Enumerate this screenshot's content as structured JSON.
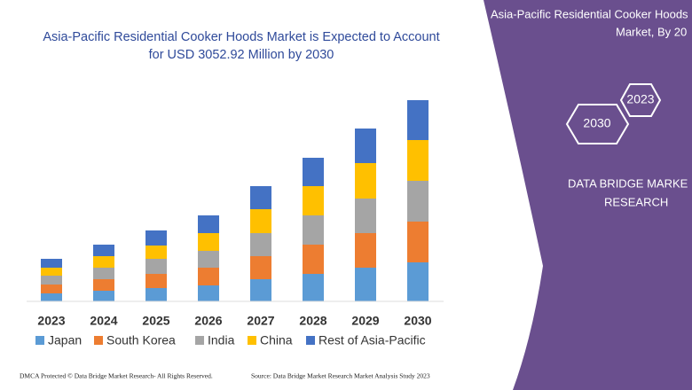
{
  "chart_data": {
    "type": "stacked-bar",
    "title": [
      "Asia-Pacific Residential Cooker Hoods Market is Expected to Account",
      "for USD 3052.92 Million by 2030"
    ],
    "categories": [
      "2023",
      "2024",
      "2025",
      "2026",
      "2027",
      "2028",
      "2029",
      "2030"
    ],
    "series": [
      {
        "name": "Japan",
        "color": "#5b9bd5",
        "values": [
          9,
          12,
          15,
          18,
          25,
          31,
          38,
          44
        ]
      },
      {
        "name": "South Korea",
        "color": "#ed7d31",
        "values": [
          10,
          13,
          16,
          20,
          26,
          33,
          39,
          46
        ]
      },
      {
        "name": "India",
        "color": "#a5a5a5",
        "values": [
          10,
          13,
          17,
          19,
          26,
          33,
          39,
          46
        ]
      },
      {
        "name": "China",
        "color": "#ffc000",
        "values": [
          9,
          13,
          15,
          20,
          27,
          33,
          40,
          46
        ]
      },
      {
        "name": "Rest of Asia-Pacific",
        "color": "#4472c4",
        "values": [
          10,
          13,
          17,
          20,
          26,
          32,
          39,
          45
        ]
      }
    ],
    "ylim": [
      0,
      240
    ]
  },
  "panel": {
    "title": [
      "Asia-Pacific Residential Cooker Hoods",
      "Market, By 20"
    ],
    "hexagons": [
      "2030",
      "2023"
    ],
    "brand": [
      "DATA BRIDGE MARKE",
      "RESEARCH"
    ]
  },
  "footer": {
    "left": "DMCA Protected © Data Bridge Market Research- All Rights Reserved.",
    "right": "Source: Data Bridge Market Research Market Analysis Study 2023"
  }
}
